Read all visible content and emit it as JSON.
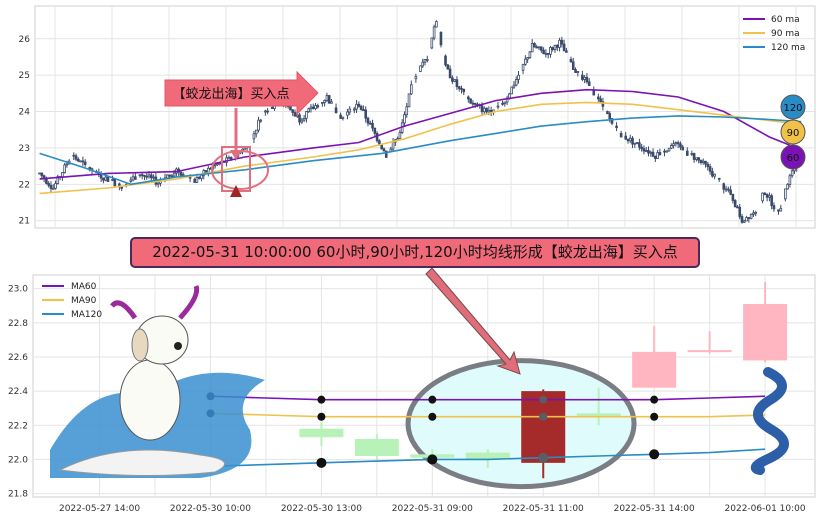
{
  "banner_text": "2022-05-31 10:00:00 60小时,90小时,120小时均线形成【蛟龙出海】买入点",
  "callout_text": "【蛟龙出海】买入点",
  "badges": [
    "120",
    "90",
    "60"
  ],
  "colors": {
    "ma60": "#7b12b5",
    "ma90": "#f0c24a",
    "ma120": "#2a8cc4",
    "candle_up_top": "#3a4a6a",
    "candle_bottom_up": "#ffb6c1",
    "candle_bottom_down": "#b8f2b8",
    "signal_candle": "#a52a2a",
    "arrow": "#e07070",
    "highlight": "#e0fbfb"
  },
  "chart_data": [
    {
      "type": "candlestick",
      "title": "",
      "legend": [
        "60 ma",
        "90 ma",
        "120 ma"
      ],
      "legend_position": "top-right",
      "ylim": [
        20.8,
        26.9
      ],
      "yticks": [
        21,
        22,
        23,
        24,
        25,
        26
      ],
      "grid": true,
      "price_path": [
        [
          0,
          22.3
        ],
        [
          6,
          21.9
        ],
        [
          14,
          22.8
        ],
        [
          20,
          22.5
        ],
        [
          28,
          22.2
        ],
        [
          36,
          21.95
        ],
        [
          44,
          22.3
        ],
        [
          52,
          22.05
        ],
        [
          60,
          22.4
        ],
        [
          68,
          22.1
        ],
        [
          76,
          22.5
        ],
        [
          84,
          22.7
        ],
        [
          92,
          23.1
        ],
        [
          98,
          24.0
        ],
        [
          106,
          24.3
        ],
        [
          114,
          23.8
        ],
        [
          120,
          24.1
        ],
        [
          126,
          24.4
        ],
        [
          132,
          23.8
        ],
        [
          140,
          24.2
        ],
        [
          146,
          23.5
        ],
        [
          152,
          22.8
        ],
        [
          158,
          23.4
        ],
        [
          164,
          24.9
        ],
        [
          170,
          25.5
        ],
        [
          174,
          26.5
        ],
        [
          178,
          25.2
        ],
        [
          184,
          24.6
        ],
        [
          190,
          24.2
        ],
        [
          196,
          24.0
        ],
        [
          204,
          24.3
        ],
        [
          210,
          25.0
        ],
        [
          216,
          25.8
        ],
        [
          222,
          25.6
        ],
        [
          228,
          25.9
        ],
        [
          234,
          25.2
        ],
        [
          240,
          24.8
        ],
        [
          246,
          24.2
        ],
        [
          254,
          23.4
        ],
        [
          262,
          23.1
        ],
        [
          270,
          22.8
        ],
        [
          278,
          23.1
        ],
        [
          286,
          22.8
        ],
        [
          292,
          22.5
        ],
        [
          298,
          22.1
        ],
        [
          304,
          21.6
        ],
        [
          308,
          21.0
        ],
        [
          314,
          21.3
        ],
        [
          318,
          21.8
        ],
        [
          324,
          21.2
        ],
        [
          330,
          22.4
        ],
        [
          334,
          22.9
        ]
      ],
      "series": [
        {
          "name": "60 ma",
          "points": [
            [
              0,
              22.15
            ],
            [
              30,
              22.3
            ],
            [
              60,
              22.35
            ],
            [
              90,
              22.75
            ],
            [
              120,
              23.0
            ],
            [
              140,
              23.15
            ],
            [
              160,
              23.6
            ],
            [
              180,
              23.95
            ],
            [
              200,
              24.3
            ],
            [
              220,
              24.5
            ],
            [
              240,
              24.6
            ],
            [
              260,
              24.55
            ],
            [
              280,
              24.4
            ],
            [
              300,
              24.0
            ],
            [
              320,
              23.3
            ],
            [
              334,
              22.95
            ]
          ]
        },
        {
          "name": "90 ma",
          "points": [
            [
              0,
              21.75
            ],
            [
              30,
              21.9
            ],
            [
              60,
              22.15
            ],
            [
              90,
              22.5
            ],
            [
              120,
              22.75
            ],
            [
              140,
              22.95
            ],
            [
              160,
              23.25
            ],
            [
              180,
              23.65
            ],
            [
              200,
              24.0
            ],
            [
              220,
              24.2
            ],
            [
              240,
              24.25
            ],
            [
              260,
              24.2
            ],
            [
              280,
              24.05
            ],
            [
              300,
              23.9
            ],
            [
              320,
              23.75
            ],
            [
              334,
              23.65
            ]
          ]
        },
        {
          "name": "120 ma",
          "points": [
            [
              0,
              22.85
            ],
            [
              20,
              22.45
            ],
            [
              40,
              22.0
            ],
            [
              60,
              22.2
            ],
            [
              90,
              22.4
            ],
            [
              120,
              22.65
            ],
            [
              150,
              22.85
            ],
            [
              180,
              23.2
            ],
            [
              200,
              23.4
            ],
            [
              220,
              23.6
            ],
            [
              240,
              23.72
            ],
            [
              260,
              23.82
            ],
            [
              280,
              23.88
            ],
            [
              300,
              23.85
            ],
            [
              320,
              23.78
            ],
            [
              334,
              23.72
            ]
          ]
        }
      ]
    },
    {
      "type": "candlestick",
      "legend": [
        "MA60",
        "MA90",
        "MA120"
      ],
      "legend_position": "top-left",
      "ylim": [
        21.78,
        23.08
      ],
      "yticks": [
        21.8,
        22.0,
        22.2,
        22.4,
        22.6,
        22.8,
        23.0
      ],
      "x_tick_labels": [
        "2022-05-27 14:00",
        "2022-05-30 10:00",
        "2022-05-30 13:00",
        "2022-05-31 09:00",
        "2022-05-31 11:00",
        "2022-05-31 14:00",
        "2022-06-01 10:00"
      ],
      "grid": true,
      "candles": [
        {
          "x": 4,
          "open": 22.18,
          "close": 22.13,
          "high": 22.22,
          "low": 22.08
        },
        {
          "x": 5,
          "open": 22.12,
          "close": 22.02,
          "high": 22.15,
          "low": 21.99
        },
        {
          "x": 6,
          "open": 22.03,
          "close": 22.01,
          "high": 22.06,
          "low": 21.99
        },
        {
          "x": 7,
          "open": 22.04,
          "close": 22.0,
          "high": 22.06,
          "low": 21.95
        },
        {
          "x": 8,
          "open": 21.98,
          "close": 22.4,
          "high": 22.41,
          "low": 21.89,
          "signal": true
        },
        {
          "x": 9,
          "open": 22.27,
          "close": 22.25,
          "high": 22.42,
          "low": 22.2
        },
        {
          "x": 10,
          "open": 22.42,
          "close": 22.63,
          "high": 22.78,
          "low": 22.42
        },
        {
          "x": 11,
          "open": 22.64,
          "close": 22.64,
          "high": 22.75,
          "low": 22.62
        },
        {
          "x": 12,
          "open": 22.58,
          "close": 22.91,
          "high": 23.04,
          "low": 22.57
        }
      ],
      "series": [
        {
          "name": "MA60",
          "points": [
            [
              2,
              22.37
            ],
            [
              3,
              22.36
            ],
            [
              4,
              22.35
            ],
            [
              5,
              22.35
            ],
            [
              6,
              22.35
            ],
            [
              7,
              22.35
            ],
            [
              8,
              22.35
            ],
            [
              9,
              22.35
            ],
            [
              10,
              22.35
            ],
            [
              11,
              22.36
            ],
            [
              12,
              22.37
            ]
          ]
        },
        {
          "name": "MA90",
          "points": [
            [
              2,
              22.27
            ],
            [
              3,
              22.26
            ],
            [
              4,
              22.25
            ],
            [
              5,
              22.25
            ],
            [
              6,
              22.25
            ],
            [
              7,
              22.25
            ],
            [
              8,
              22.25
            ],
            [
              9,
              22.25
            ],
            [
              10,
              22.25
            ],
            [
              11,
              22.25
            ],
            [
              12,
              22.26
            ]
          ]
        },
        {
          "name": "MA120",
          "points": [
            [
              2,
              21.96
            ],
            [
              3,
              21.97
            ],
            [
              4,
              21.98
            ],
            [
              5,
              21.99
            ],
            [
              6,
              22.0
            ],
            [
              7,
              22.0
            ],
            [
              8,
              22.01
            ],
            [
              9,
              22.02
            ],
            [
              10,
              22.03
            ],
            [
              11,
              22.04
            ],
            [
              12,
              22.06
            ]
          ]
        }
      ]
    }
  ]
}
